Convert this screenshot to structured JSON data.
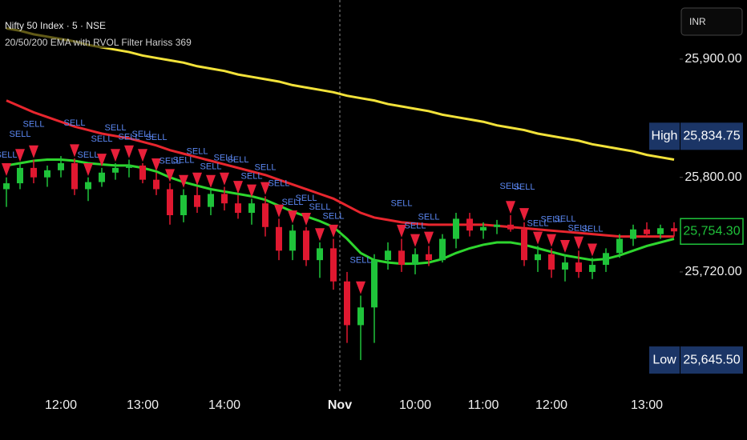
{
  "chart_data": {
    "type": "candlestick",
    "title": "Nifty 50 Index · 5 · NSE",
    "subtitle": "20/50/200 EMA with RVOL Filter Hariss 369",
    "currency": "INR",
    "categories": [
      null,
      null,
      null,
      null,
      "12:00",
      null,
      null,
      null,
      null,
      null,
      "13:00",
      null,
      null,
      null,
      null,
      null,
      "14:00",
      null,
      null,
      null,
      null,
      null,
      null,
      null,
      null,
      "Nov",
      null,
      null,
      null,
      null,
      "10:00",
      null,
      null,
      null,
      null,
      "11:00",
      null,
      null,
      null,
      null,
      "12:00",
      null,
      null,
      null,
      null,
      null,
      null,
      "13:00",
      null,
      null
    ],
    "open": [
      25790,
      25795,
      25808,
      25800,
      25806,
      25812,
      25790,
      25796,
      25804,
      25808,
      25810,
      25798,
      25790,
      25768,
      25785,
      25775,
      25786,
      25778,
      25770,
      25778,
      25758,
      25738,
      25755,
      25730,
      25740,
      25712,
      25675,
      25690,
      25730,
      25738,
      25726,
      25735,
      25730,
      25748,
      25765,
      25755,
      25758,
      25760,
      25756,
      25730,
      25735,
      25722,
      25728,
      25720,
      25726,
      25736,
      25748,
      25756,
      25752,
      25757
    ],
    "high": [
      25800,
      25812,
      25815,
      25810,
      25818,
      25816,
      25800,
      25808,
      25812,
      25815,
      25812,
      25804,
      25795,
      25790,
      25792,
      25790,
      25792,
      25785,
      25782,
      25784,
      25765,
      25760,
      25758,
      25745,
      25748,
      25720,
      25700,
      25735,
      25745,
      25748,
      25740,
      25742,
      25752,
      25770,
      25770,
      25762,
      25764,
      25768,
      25762,
      25742,
      25740,
      25735,
      25738,
      25732,
      25740,
      25752,
      25760,
      25762,
      25760,
      25762
    ],
    "low": [
      25775,
      25790,
      25795,
      25792,
      25800,
      25785,
      25780,
      25792,
      25798,
      25800,
      25795,
      25785,
      25760,
      25762,
      25770,
      25768,
      25772,
      25765,
      25760,
      25750,
      25730,
      25730,
      25725,
      25715,
      25705,
      25660,
      25645.5,
      25660,
      25722,
      25720,
      25718,
      25725,
      25728,
      25740,
      25750,
      25748,
      25752,
      25754,
      25725,
      25720,
      25715,
      25712,
      25715,
      25714,
      25720,
      25732,
      25742,
      25750,
      25748,
      25750
    ],
    "close": [
      25795,
      25808,
      25800,
      25806,
      25812,
      25790,
      25796,
      25804,
      25808,
      25810,
      25798,
      25790,
      25768,
      25785,
      25775,
      25786,
      25778,
      25770,
      25778,
      25758,
      25738,
      25755,
      25730,
      25740,
      25712,
      25675,
      25690,
      25730,
      25738,
      25726,
      25735,
      25730,
      25748,
      25765,
      25755,
      25758,
      25760,
      25756,
      25730,
      25735,
      25722,
      25728,
      25720,
      25726,
      25736,
      25748,
      25756,
      25752,
      25757,
      25754.3
    ],
    "up_color": "#1fc33a",
    "down_color": "#e01830",
    "lines": [
      {
        "color": "#f2e23a",
        "values": [
          25926,
          25924,
          25921,
          25919,
          25917,
          25915,
          25912,
          25910,
          25908,
          25906,
          25903,
          25901,
          25899,
          25897,
          25894,
          25892,
          25890,
          25887,
          25885,
          25883,
          25881,
          25878,
          25876,
          25874,
          25872,
          25869,
          25867,
          25865,
          25862,
          25860,
          25858,
          25856,
          25853,
          25851,
          25849,
          25847,
          25844,
          25842,
          25840,
          25837,
          25835,
          25833,
          25831,
          25828,
          25826,
          25824,
          25822,
          25819,
          25817,
          25815
        ]
      },
      {
        "color": "#e8262e",
        "values": [
          25865,
          25860,
          25855,
          25851,
          25847,
          25843,
          25840,
          25837,
          25835,
          25833,
          25830,
          25827,
          25823,
          25820,
          25817,
          25814,
          25811,
          25808,
          25805,
          25802,
          25798,
          25794,
          25790,
          25786,
          25782,
          25776,
          25770,
          25766,
          25764,
          25762,
          25761,
          25760,
          25760,
          25760,
          25760,
          25760,
          25759,
          25758,
          25757,
          25756,
          25755,
          25754,
          25753,
          25752,
          25751,
          25750,
          25750,
          25750,
          25750,
          25750
        ]
      },
      {
        "color": "#2ed62e",
        "values": [
          25810,
          25812,
          25814,
          25815,
          25815,
          25814,
          25812,
          25811,
          25810,
          25810,
          25808,
          25805,
          25800,
          25796,
          25793,
          25790,
          25788,
          25786,
          25784,
          25781,
          25776,
          25771,
          25767,
          25763,
          25758,
          25748,
          25736,
          25730,
          25728,
          25727,
          25727,
          25728,
          25731,
          25736,
          25740,
          25743,
          25745,
          25745,
          25743,
          25740,
          25737,
          25734,
          25732,
          25730,
          25731,
          25734,
          25738,
          25742,
          25745,
          25748
        ]
      }
    ],
    "sell_signals": {
      "label": "SELL",
      "color": "#e8203a",
      "text_color": "#5a86f0",
      "values": [
        25812,
        25824,
        25827,
        null,
        null,
        25828,
        25812,
        25820,
        25824,
        25827,
        25824,
        25816,
        25807,
        25802,
        25804,
        25802,
        25804,
        25797,
        25794,
        25796,
        25777,
        25772,
        25770,
        25757,
        25760,
        null,
        25712,
        null,
        null,
        25760,
        25752,
        25754,
        null,
        null,
        null,
        null,
        null,
        25780,
        25774,
        25754,
        25752,
        25747,
        25750,
        25744,
        null,
        null,
        null,
        null,
        null,
        null
      ]
    },
    "ylim": [
      25632,
      25950
    ],
    "yticks": [
      {
        "value": 25720,
        "label": "25,720.00"
      },
      {
        "value": 25800,
        "label": "25,800.00"
      },
      {
        "value": 25900,
        "label": "25,900.00"
      }
    ],
    "markers": [
      {
        "label": "High",
        "value": 25834.75,
        "value_label": "25,834.75"
      },
      {
        "label": "Low",
        "value": 25645.5,
        "value_label": "25,645.50"
      }
    ],
    "last_price": {
      "value": 25754.3,
      "label": "25,754.30"
    }
  }
}
